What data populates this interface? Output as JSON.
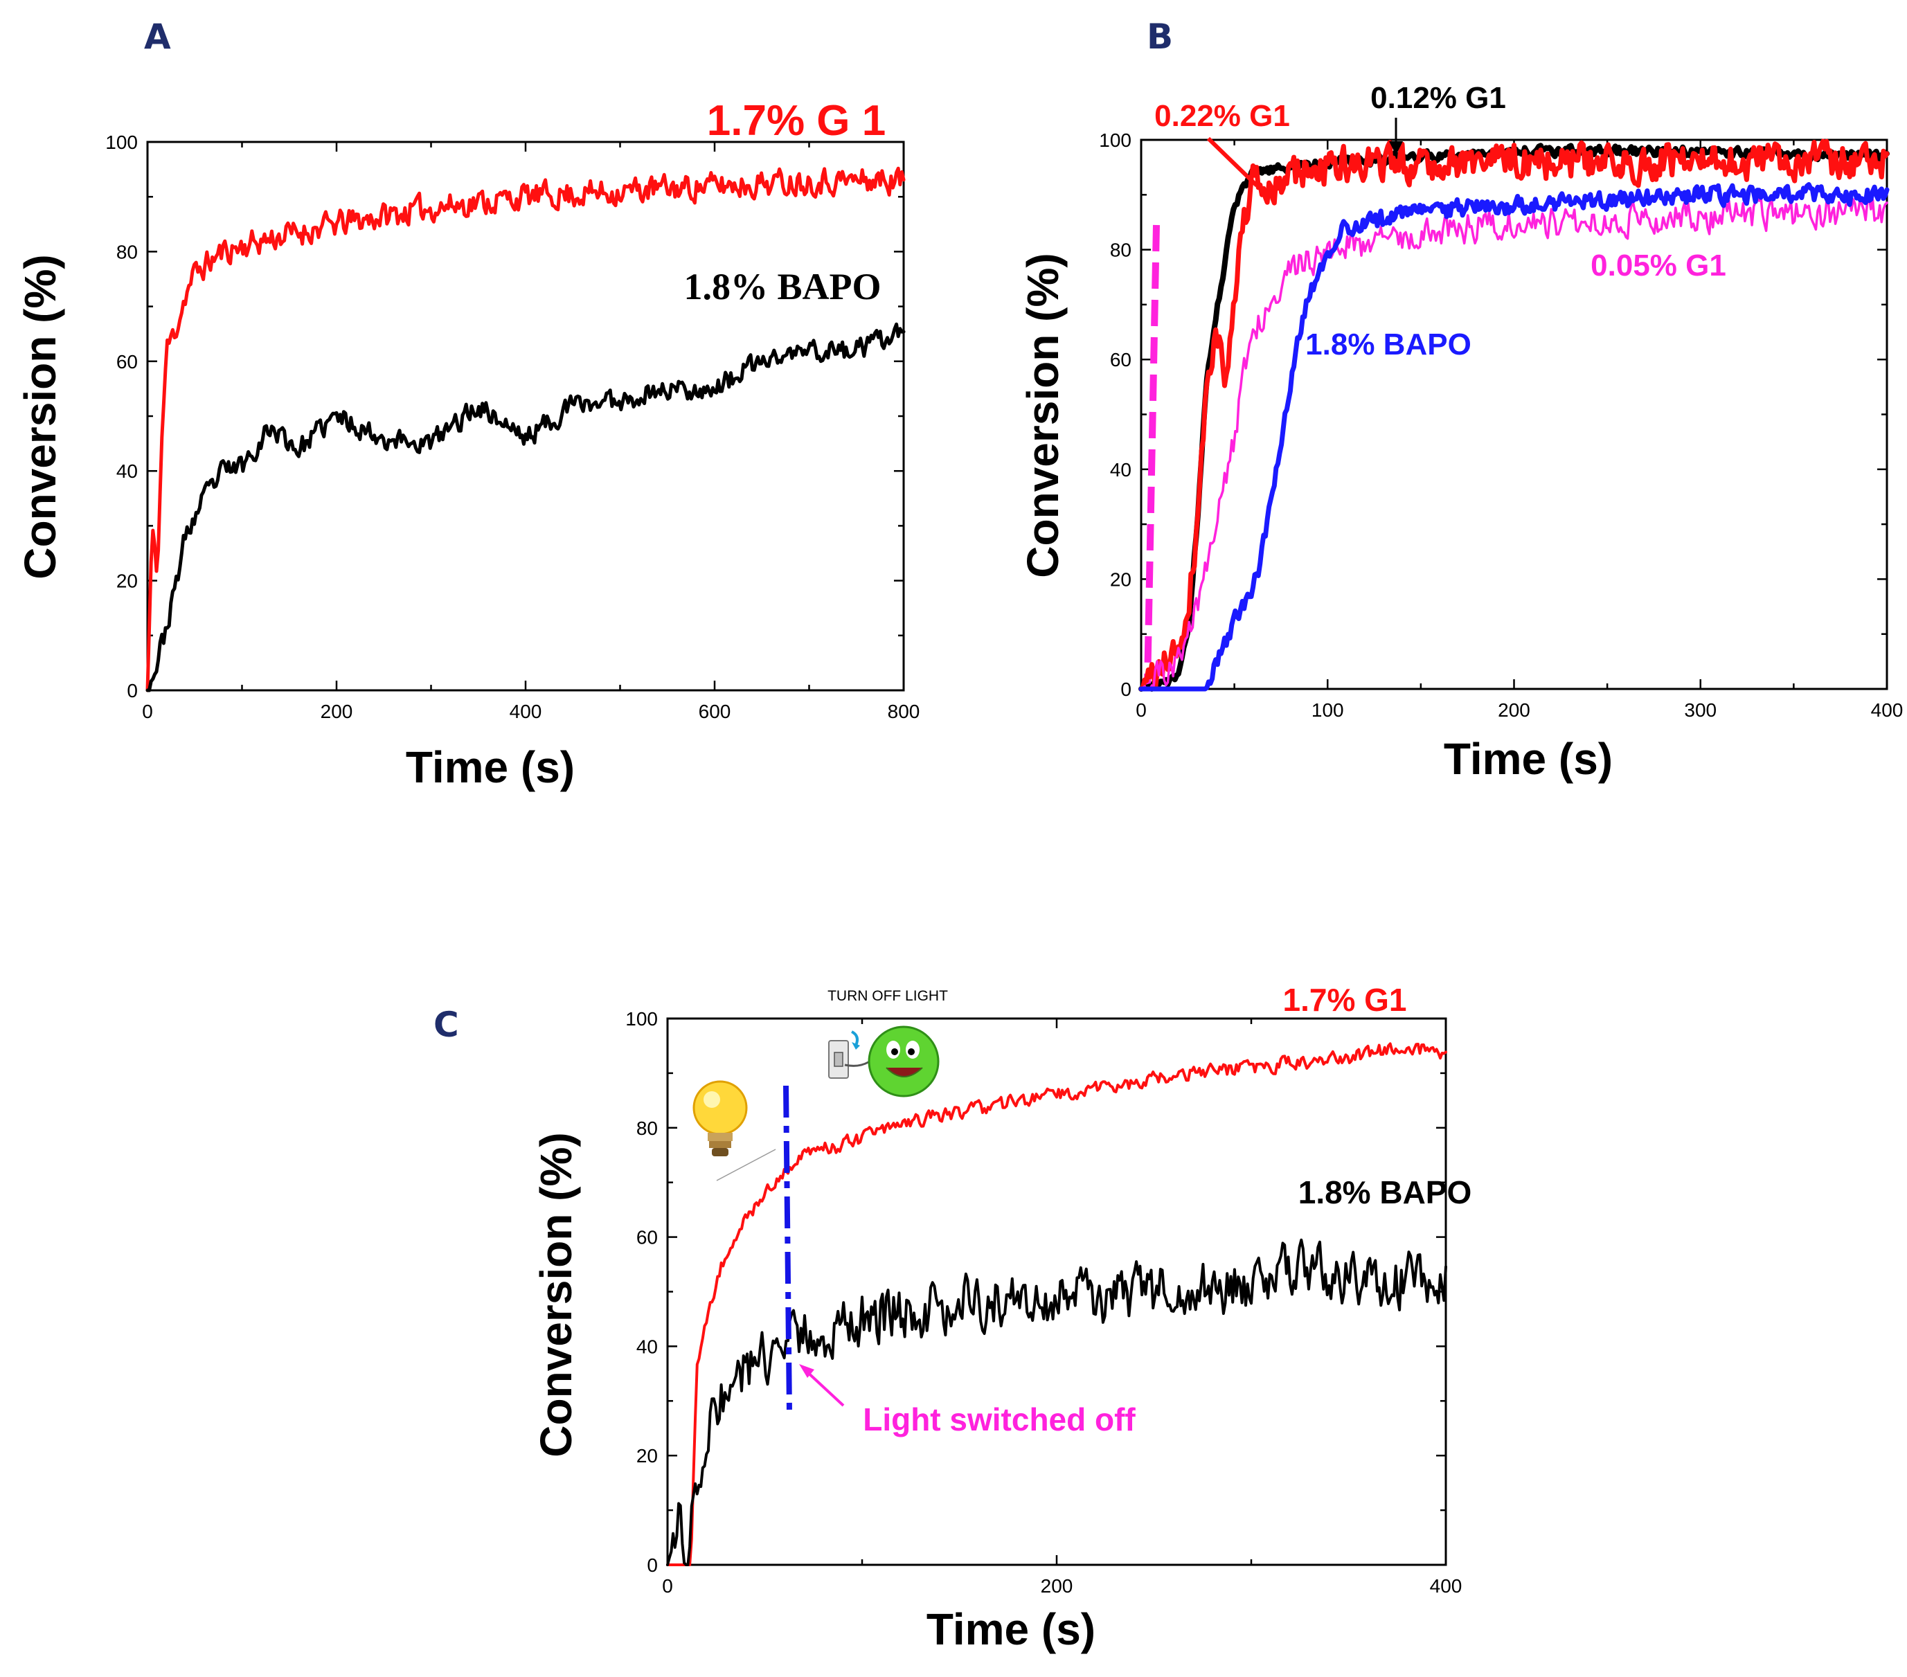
{
  "colors": {
    "red": "#ff1010",
    "black": "#000000",
    "blue": "#1a1aff",
    "magenta": "#ff22dd",
    "panel_letter": "#1f2d6b",
    "dash_blue": "#1414e6"
  },
  "chart_data": [
    {
      "panel": "A",
      "type": "line",
      "xlabel": "Time (s)",
      "ylabel": "Conversion (%)",
      "xlim": [
        0,
        800
      ],
      "ylim": [
        0,
        100
      ],
      "xticks": [
        0,
        200,
        400,
        600,
        800
      ],
      "yticks": [
        0,
        20,
        40,
        60,
        80,
        100
      ],
      "annotations": [
        {
          "text": "1.7% G 1"
        },
        {
          "text": "1.8% BAPO"
        }
      ],
      "series": [
        {
          "name": "1.7% G 1",
          "color": "#ff1010",
          "width": 5,
          "noise": 2.2,
          "seed": 11,
          "anchors": [
            [
              0,
              0
            ],
            [
              5,
              30
            ],
            [
              10,
              20
            ],
            [
              15,
              45
            ],
            [
              20,
              62
            ],
            [
              30,
              66
            ],
            [
              40,
              72
            ],
            [
              50,
              76
            ],
            [
              80,
              80
            ],
            [
              120,
              82
            ],
            [
              200,
              85
            ],
            [
              300,
              88
            ],
            [
              400,
              90
            ],
            [
              500,
              91
            ],
            [
              600,
              92
            ],
            [
              700,
              93
            ],
            [
              800,
              93
            ]
          ]
        },
        {
          "name": "1.8% BAPO",
          "color": "#000000",
          "width": 5,
          "noise": 1.8,
          "seed": 23,
          "anchors": [
            [
              0,
              0
            ],
            [
              10,
              5
            ],
            [
              25,
              15
            ],
            [
              40,
              28
            ],
            [
              60,
              35
            ],
            [
              80,
              40
            ],
            [
              100,
              41
            ],
            [
              130,
              48
            ],
            [
              160,
              44
            ],
            [
              200,
              50
            ],
            [
              250,
              46
            ],
            [
              300,
              45
            ],
            [
              350,
              52
            ],
            [
              400,
              46
            ],
            [
              450,
              52
            ],
            [
              500,
              53
            ],
            [
              550,
              55
            ],
            [
              600,
              55
            ],
            [
              650,
              60
            ],
            [
              700,
              62
            ],
            [
              750,
              62
            ],
            [
              800,
              65
            ]
          ]
        }
      ]
    },
    {
      "panel": "B",
      "type": "line",
      "xlabel": "Time (s)",
      "ylabel": "Conversion (%)",
      "xlim": [
        0,
        400
      ],
      "ylim": [
        0,
        100
      ],
      "xticks": [
        0,
        100,
        200,
        300,
        400
      ],
      "yticks": [
        0,
        20,
        40,
        60,
        80,
        100
      ],
      "annotations": [
        {
          "text": "0.22% G1"
        },
        {
          "text": "0.12% G1"
        },
        {
          "text": "0.05% G1"
        },
        {
          "text": "1.8% BAPO"
        }
      ],
      "series": [
        {
          "name": "0.12% G1",
          "color": "#000000",
          "width": 8,
          "noise": 0.8,
          "seed": 31,
          "anchors": [
            [
              0,
              0
            ],
            [
              20,
              2
            ],
            [
              25,
              10
            ],
            [
              30,
              30
            ],
            [
              35,
              55
            ],
            [
              40,
              68
            ],
            [
              45,
              78
            ],
            [
              50,
              88
            ],
            [
              60,
              94
            ],
            [
              80,
              95
            ],
            [
              100,
              96
            ],
            [
              150,
              97
            ],
            [
              200,
              98
            ],
            [
              300,
              98
            ],
            [
              400,
              97
            ]
          ]
        },
        {
          "name": "0.22% G1",
          "color": "#ff1010",
          "width": 7,
          "noise": 3.0,
          "seed": 41,
          "anchors": [
            [
              0,
              0
            ],
            [
              10,
              3
            ],
            [
              20,
              8
            ],
            [
              25,
              15
            ],
            [
              30,
              30
            ],
            [
              35,
              55
            ],
            [
              40,
              65
            ],
            [
              45,
              58
            ],
            [
              50,
              72
            ],
            [
              55,
              85
            ],
            [
              60,
              92
            ],
            [
              70,
              90
            ],
            [
              80,
              94
            ],
            [
              100,
              95
            ],
            [
              150,
              96
            ],
            [
              200,
              96
            ],
            [
              300,
              96
            ],
            [
              400,
              96
            ]
          ]
        },
        {
          "name": "0.05% G1",
          "color": "#ff22dd",
          "width": 3.5,
          "noise": 2.5,
          "seed": 51,
          "anchors": [
            [
              0,
              0
            ],
            [
              20,
              5
            ],
            [
              30,
              15
            ],
            [
              40,
              30
            ],
            [
              50,
              45
            ],
            [
              55,
              58
            ],
            [
              60,
              65
            ],
            [
              70,
              72
            ],
            [
              80,
              76
            ],
            [
              100,
              80
            ],
            [
              150,
              83
            ],
            [
              200,
              85
            ],
            [
              300,
              86
            ],
            [
              400,
              87
            ]
          ]
        },
        {
          "name": "1.8% BAPO",
          "color": "#1a1aff",
          "width": 7,
          "noise": 1.5,
          "seed": 61,
          "anchors": [
            [
              0,
              0
            ],
            [
              35,
              0
            ],
            [
              40,
              5
            ],
            [
              50,
              12
            ],
            [
              60,
              18
            ],
            [
              65,
              25
            ],
            [
              70,
              35
            ],
            [
              75,
              45
            ],
            [
              80,
              55
            ],
            [
              85,
              65
            ],
            [
              90,
              72
            ],
            [
              100,
              80
            ],
            [
              110,
              84
            ],
            [
              150,
              87
            ],
            [
              200,
              88
            ],
            [
              300,
              90
            ],
            [
              400,
              90
            ]
          ]
        }
      ]
    },
    {
      "panel": "C",
      "type": "line",
      "xlabel": "Time (s)",
      "ylabel": "Conversion (%)",
      "xlim": [
        0,
        400
      ],
      "ylim": [
        0,
        100
      ],
      "xticks": [
        0,
        200,
        400
      ],
      "yticks": [
        0,
        20,
        40,
        60,
        80,
        100
      ],
      "annotations": [
        {
          "text": "TURN OFF LIGHT"
        },
        {
          "text": "1.7% G1"
        },
        {
          "text": "1.8% BAPO"
        },
        {
          "text": "Light switched off"
        }
      ],
      "light_off_time": 62,
      "series": [
        {
          "name": "1.7% G1",
          "color": "#ff1010",
          "width": 4,
          "noise": 1.2,
          "seed": 71,
          "anchors": [
            [
              0,
              0
            ],
            [
              12,
              0
            ],
            [
              15,
              35
            ],
            [
              20,
              45
            ],
            [
              25,
              52
            ],
            [
              30,
              57
            ],
            [
              40,
              63
            ],
            [
              50,
              68
            ],
            [
              60,
              72
            ],
            [
              70,
              75
            ],
            [
              80,
              76
            ],
            [
              100,
              78
            ],
            [
              120,
              81
            ],
            [
              150,
              83
            ],
            [
              200,
              86
            ],
            [
              250,
              89
            ],
            [
              300,
              91
            ],
            [
              350,
              93
            ],
            [
              380,
              95
            ],
            [
              400,
              93
            ]
          ]
        },
        {
          "name": "1.8% BAPO",
          "color": "#000000",
          "width": 4,
          "noise": 4.5,
          "seed": 81,
          "anchors": [
            [
              0,
              0
            ],
            [
              5,
              10
            ],
            [
              10,
              0
            ],
            [
              15,
              15
            ],
            [
              20,
              25
            ],
            [
              30,
              32
            ],
            [
              40,
              35
            ],
            [
              50,
              38
            ],
            [
              60,
              40
            ],
            [
              70,
              42
            ],
            [
              100,
              45
            ],
            [
              150,
              48
            ],
            [
              200,
              48
            ],
            [
              250,
              50
            ],
            [
              300,
              51
            ],
            [
              320,
              55
            ],
            [
              350,
              52
            ],
            [
              400,
              52
            ]
          ]
        }
      ]
    }
  ]
}
